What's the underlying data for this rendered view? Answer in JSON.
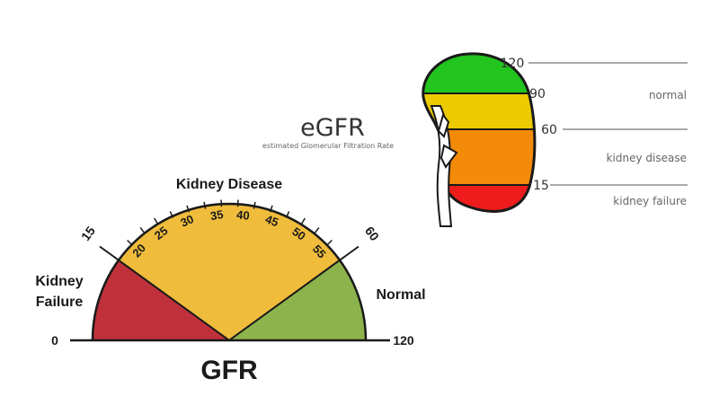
{
  "gauge": {
    "min_label": "0",
    "max_label": "120",
    "label_left_line1": "Kidney",
    "label_left_line2": "Failure",
    "label_top": "Kidney Disease",
    "label_right": "Normal",
    "title": "GFR",
    "boundary_left": "15",
    "boundary_right": "60",
    "scale_ticks": [
      "20",
      "25",
      "30",
      "35",
      "40",
      "45",
      "50",
      "55"
    ],
    "colors": {
      "failure": "#c0313b",
      "disease": "#f0bc3c",
      "normal": "#8db44c"
    }
  },
  "kidney": {
    "title": "eGFR",
    "subtitle": "estimated Glomerular Filtration Rate",
    "levels": [
      "120",
      "90",
      "60",
      "15"
    ],
    "zones": [
      "normal",
      "kidney disease",
      "kidney failure"
    ],
    "colors": {
      "green": "#22c41e",
      "yellow": "#eccb02",
      "orange": "#f38a08",
      "red": "#ee1c1c"
    }
  }
}
